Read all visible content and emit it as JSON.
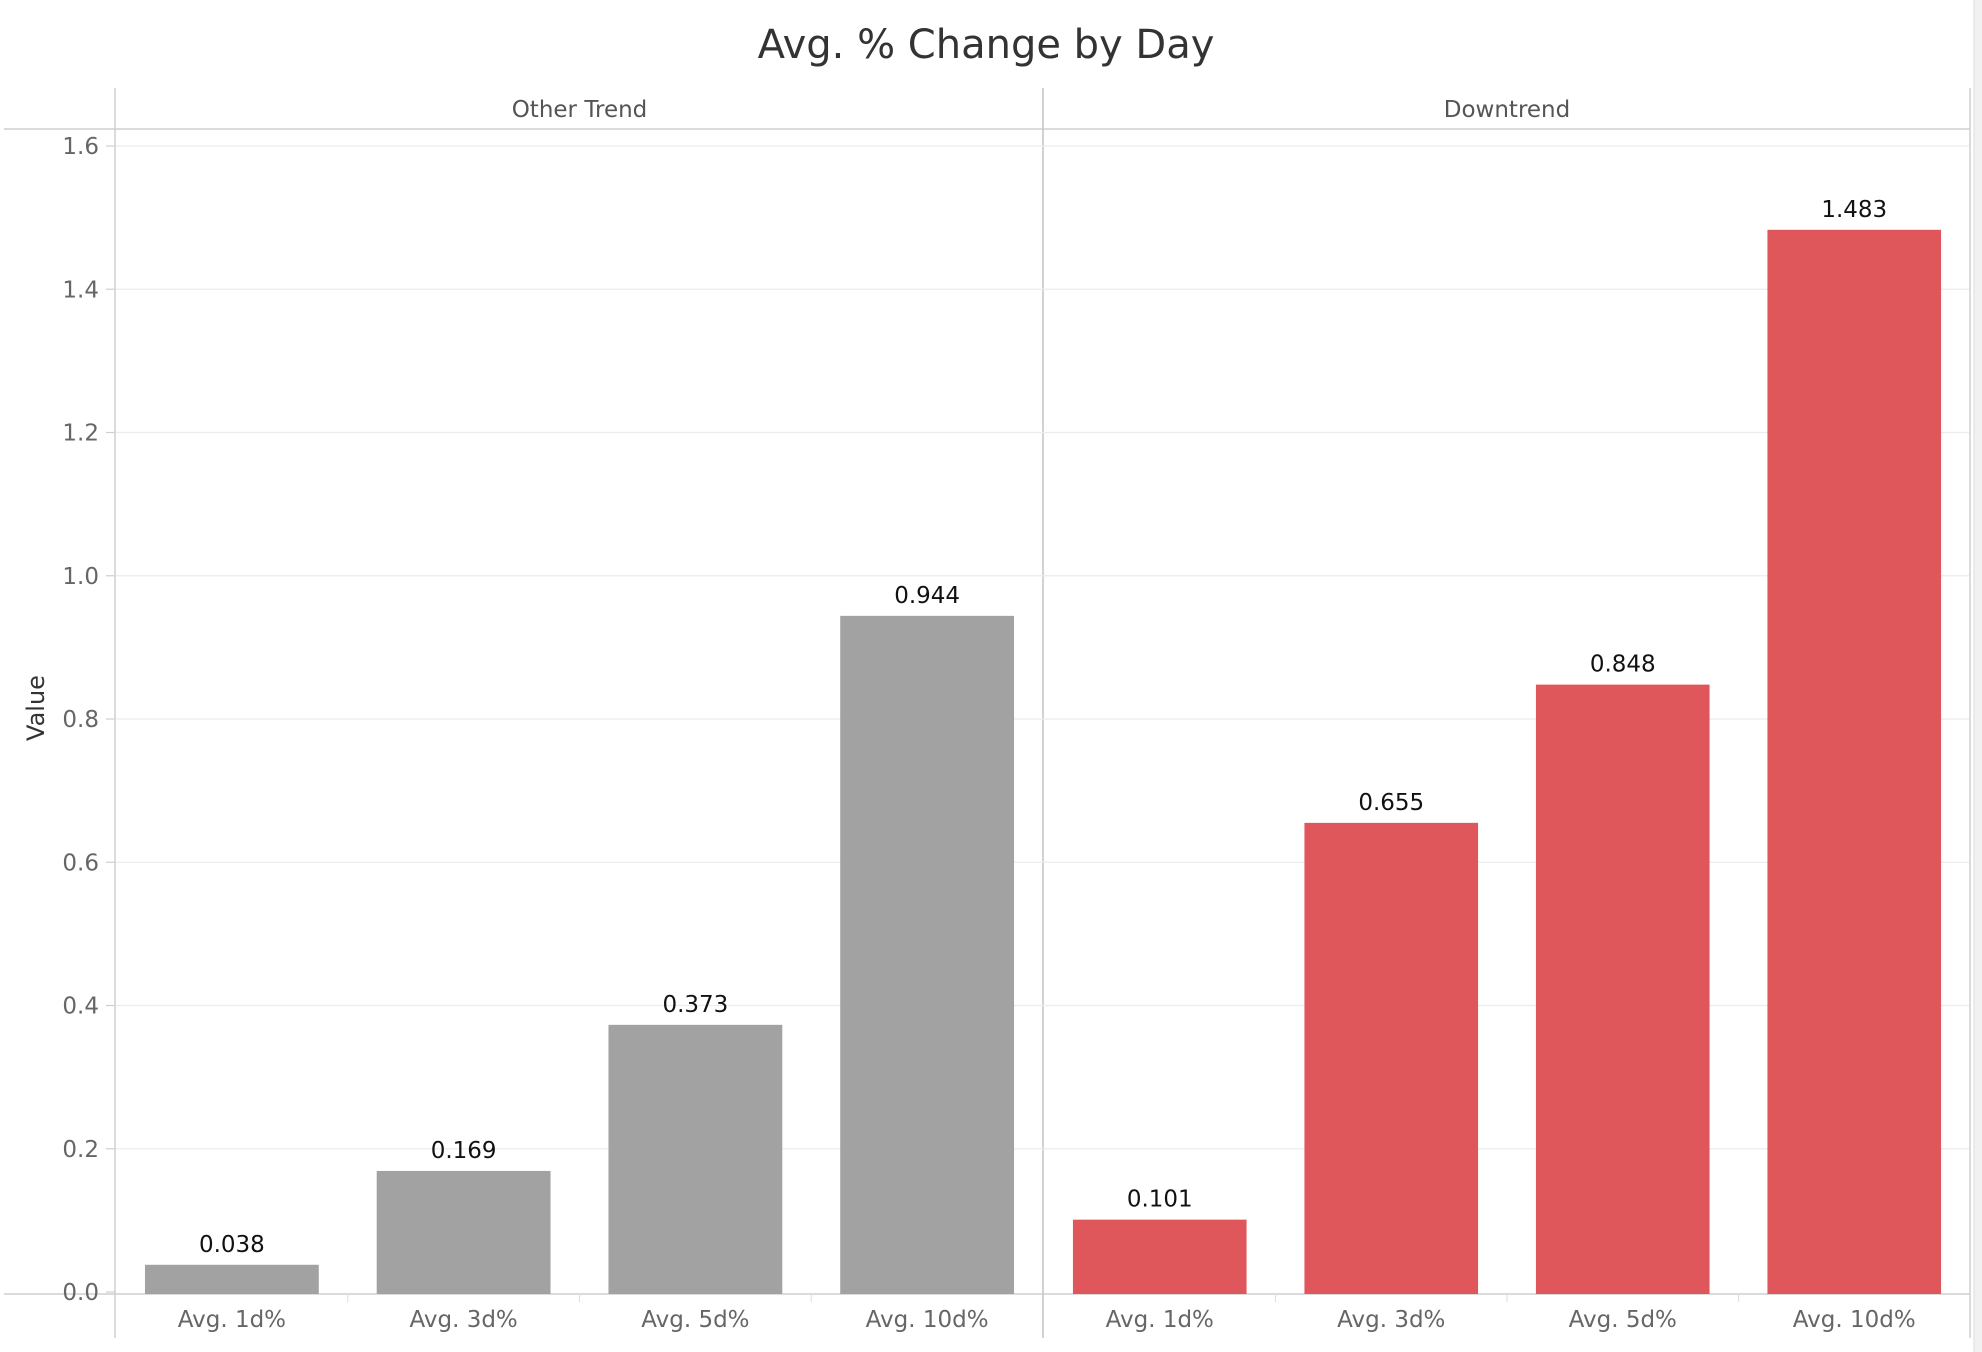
{
  "chart_data": {
    "type": "bar",
    "title": "Avg. % Change by Day",
    "xlabel": "",
    "ylabel": "Value",
    "ylim": [
      0,
      1.6
    ],
    "y_ticks": [
      "0.0",
      "0.2",
      "0.4",
      "0.6",
      "0.8",
      "1.0",
      "1.2",
      "1.4",
      "1.6"
    ],
    "grid": true,
    "panels": [
      {
        "label": "Other Trend",
        "color": "#a2a2a2",
        "categories": [
          "Avg. 1d%",
          "Avg. 3d%",
          "Avg. 5d%",
          "Avg. 10d%"
        ],
        "values": [
          0.038,
          0.169,
          0.373,
          0.944
        ],
        "value_labels": [
          "0.038",
          "0.169",
          "0.373",
          "0.944"
        ]
      },
      {
        "label": "Downtrend",
        "color": "#e0575b",
        "categories": [
          "Avg. 1d%",
          "Avg. 3d%",
          "Avg. 5d%",
          "Avg. 10d%"
        ],
        "values": [
          0.101,
          0.655,
          0.848,
          1.483
        ],
        "value_labels": [
          "0.101",
          "0.655",
          "0.848",
          "1.483"
        ]
      }
    ]
  }
}
